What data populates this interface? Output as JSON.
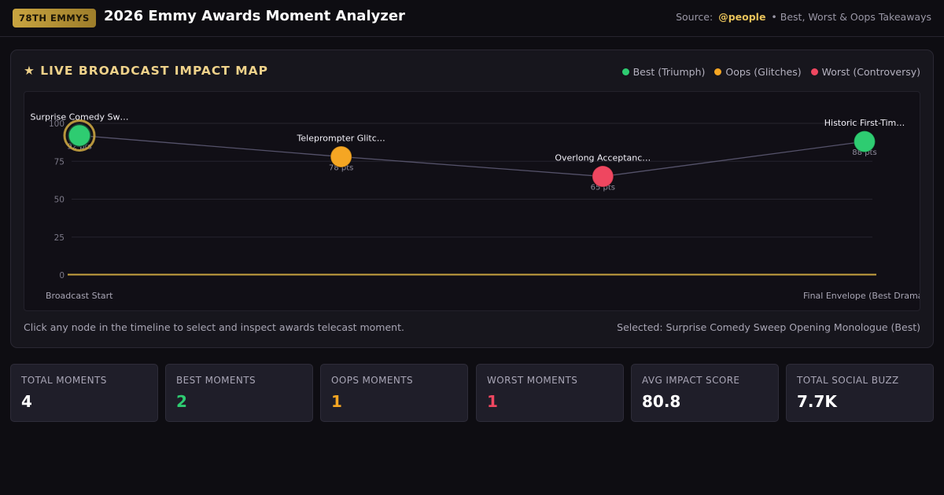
{
  "header": {
    "badge": "78TH EMMYS",
    "title": "2026 Emmy Awards Moment Analyzer",
    "source_label": "Source:",
    "source_handle": "@people",
    "source_suffix": "• Best, Worst & Oops Takeaways"
  },
  "panel": {
    "title": "★ LIVE BROADCAST IMPACT MAP",
    "legend": [
      {
        "label": "Best (Triumph)",
        "color": "#2ecc71"
      },
      {
        "label": "Oops (Glitches)",
        "color": "#f5a623"
      },
      {
        "label": "Worst (Controversy)",
        "color": "#ef4760"
      }
    ],
    "hint": "Click any node in the timeline to select and inspect awards telecast moment.",
    "selected": "Selected: Surprise Comedy Sweep Opening Monologue (Best)"
  },
  "chart_data": {
    "type": "scatter",
    "ylim": [
      0,
      100
    ],
    "yticks": [
      0,
      25,
      50,
      75,
      100
    ],
    "x_start_label": "Broadcast Start",
    "x_end_label": "Final Envelope (Best Drama)",
    "points": [
      {
        "label": "Surprise Comedy Sw…",
        "value": 92,
        "value_label": "92 pts",
        "category": "best",
        "selected": true
      },
      {
        "label": "Teleprompter Glitc…",
        "value": 78,
        "value_label": "78 pts",
        "category": "oops",
        "selected": false
      },
      {
        "label": "Overlong Acceptanc…",
        "value": 65,
        "value_label": "65 pts",
        "category": "worst",
        "selected": false
      },
      {
        "label": "Historic First-Tim…",
        "value": 88,
        "value_label": "88 pts",
        "category": "best",
        "selected": false
      }
    ],
    "colors": {
      "best": "#2ecc71",
      "oops": "#f5a623",
      "worst": "#ef4760",
      "baseline": "#c9a440",
      "selected_ring": "#c9a440"
    }
  },
  "stats": [
    {
      "label": "TOTAL MOMENTS",
      "value": "4",
      "color": "#ffffff"
    },
    {
      "label": "BEST MOMENTS",
      "value": "2",
      "color": "#2ecc71"
    },
    {
      "label": "OOPS MOMENTS",
      "value": "1",
      "color": "#f5a623"
    },
    {
      "label": "WORST MOMENTS",
      "value": "1",
      "color": "#ef4760"
    },
    {
      "label": "AVG IMPACT SCORE",
      "value": "80.8",
      "color": "#ffffff"
    },
    {
      "label": "TOTAL SOCIAL BUZZ",
      "value": "7.7K",
      "color": "#ffffff"
    }
  ]
}
